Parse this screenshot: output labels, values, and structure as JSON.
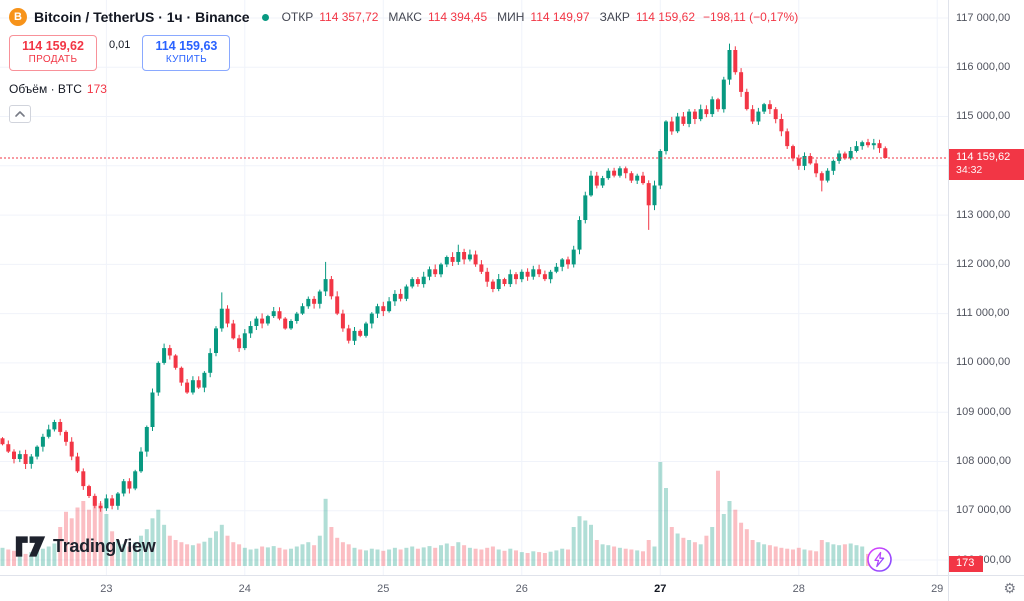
{
  "header": {
    "title": "Bitcoin / TetherUS · 1ч · Binance",
    "ohlc": {
      "o_label": "ОТКР",
      "o": "114 357,72",
      "h_label": "МАКС",
      "h": "114 394,45",
      "l_label": "МИН",
      "l": "114 149,97",
      "c_label": "ЗАКР",
      "c": "114 159,62",
      "change": "−198,11 (−0,17%)"
    },
    "sell_price": "114 159,62",
    "sell_label": "ПРОДАТЬ",
    "spread": "0,01",
    "buy_price": "114 159,63",
    "buy_label": "КУПИТЬ",
    "volume_label": "Объём · BTC",
    "volume_value": "173"
  },
  "price_line": {
    "text": "114 159,62",
    "countdown": "34:32",
    "value": 114159.62
  },
  "volume_tag": "173",
  "watermark": "TradingView",
  "colors": {
    "up": "#089981",
    "down": "#f23645",
    "vol_up": "rgba(8,153,129,0.32)",
    "vol_down": "rgba(242,54,69,0.32)",
    "grid": "#f0f3fa",
    "accent_buy": "#2962ff",
    "accent_sell": "#f23645",
    "btc_orange": "#f7931a"
  },
  "chart_data": {
    "type": "candlestick+volume",
    "title": "Bitcoin / TetherUS · 1ч · Binance",
    "symbol": "BTC/USDT",
    "interval": "1h",
    "exchange": "Binance",
    "last_candle": {
      "open": 114357.72,
      "high": 114394.45,
      "low": 114149.97,
      "close": 114159.62,
      "change": -198.11,
      "change_pct": -0.17,
      "volume_btc": 173
    },
    "y_axis": {
      "max": 117000,
      "min": 106000,
      "step": 1000
    },
    "levels": [
      {
        "t": "117 000,00",
        "v": 117000
      },
      {
        "t": "116 000,00",
        "v": 116000
      },
      {
        "t": "115 000,00",
        "v": 115000
      },
      {
        "t": "114 000,00",
        "v": 114000
      },
      {
        "t": "113 000,00",
        "v": 113000
      },
      {
        "t": "112 000,00",
        "v": 112000
      },
      {
        "t": "111 000,00",
        "v": 111000
      },
      {
        "t": "110 000,00",
        "v": 110000
      },
      {
        "t": "109 000,00",
        "v": 109000
      },
      {
        "t": "108 000,00",
        "v": 108000
      },
      {
        "t": "107 000,00",
        "v": 107000
      },
      {
        "t": "106 000,00",
        "v": 106000
      }
    ],
    "x_axis": {
      "ticks": [
        {
          "label": "23",
          "index": 18
        },
        {
          "label": "24",
          "index": 42
        },
        {
          "label": "25",
          "index": 66
        },
        {
          "label": "26",
          "index": 90
        },
        {
          "label": "27",
          "index": 114,
          "bold": true
        },
        {
          "label": "28",
          "index": 138
        },
        {
          "label": "29",
          "index": 162
        }
      ]
    },
    "price_line_value": 114159.62,
    "closes": [
      108350,
      108200,
      108050,
      108150,
      107950,
      108100,
      108300,
      108500,
      108650,
      108800,
      108600,
      108400,
      108100,
      107800,
      107500,
      107300,
      107100,
      107050,
      107250,
      107100,
      107350,
      107600,
      107450,
      107800,
      108200,
      108700,
      109400,
      110000,
      110300,
      110150,
      109900,
      109600,
      109400,
      109650,
      109500,
      109800,
      110200,
      110700,
      111100,
      110800,
      110500,
      110300,
      110600,
      110750,
      110900,
      110800,
      110950,
      111050,
      110900,
      110700,
      110850,
      111000,
      111150,
      111300,
      111200,
      111450,
      111700,
      111350,
      111000,
      110700,
      110450,
      110650,
      110550,
      110800,
      111000,
      111150,
      111050,
      111250,
      111400,
      111300,
      111550,
      111700,
      111600,
      111750,
      111900,
      111800,
      112000,
      112150,
      112050,
      112250,
      112100,
      112200,
      112000,
      111850,
      111650,
      111500,
      111700,
      111600,
      111800,
      111700,
      111850,
      111750,
      111900,
      111800,
      111700,
      111850,
      111950,
      112100,
      112000,
      112300,
      112900,
      113400,
      113800,
      113600,
      113750,
      113900,
      113800,
      113950,
      113850,
      113700,
      113800,
      113650,
      113200,
      113600,
      114300,
      114900,
      114700,
      115000,
      114850,
      115100,
      114950,
      115150,
      115050,
      115350,
      115150,
      115750,
      116350,
      115900,
      115500,
      115150,
      114900,
      115100,
      115250,
      115150,
      114950,
      114700,
      114400,
      114150,
      114000,
      114200,
      114050,
      113850,
      113700,
      113900,
      114100,
      114250,
      114150,
      114300,
      114400,
      114480,
      114420,
      114460,
      114360,
      114159.62
    ],
    "volumes": [
      420,
      380,
      350,
      300,
      280,
      320,
      360,
      400,
      450,
      520,
      900,
      1250,
      1100,
      1350,
      1500,
      1300,
      1600,
      1450,
      1200,
      800,
      600,
      500,
      450,
      550,
      700,
      850,
      1100,
      1300,
      950,
      700,
      600,
      550,
      500,
      480,
      520,
      560,
      650,
      800,
      950,
      700,
      550,
      500,
      420,
      380,
      400,
      450,
      430,
      460,
      420,
      380,
      400,
      450,
      500,
      550,
      480,
      700,
      1550,
      900,
      650,
      550,
      500,
      420,
      380,
      360,
      400,
      380,
      350,
      380,
      420,
      380,
      420,
      450,
      400,
      430,
      460,
      420,
      480,
      520,
      460,
      550,
      480,
      420,
      400,
      380,
      420,
      450,
      380,
      350,
      400,
      360,
      320,
      300,
      340,
      320,
      300,
      330,
      360,
      400,
      380,
      900,
      1150,
      1050,
      950,
      600,
      500,
      480,
      450,
      420,
      400,
      380,
      360,
      340,
      600,
      450,
      2400,
      1800,
      900,
      750,
      650,
      600,
      550,
      500,
      700,
      900,
      2200,
      1200,
      1500,
      1300,
      1000,
      850,
      600,
      550,
      500,
      480,
      450,
      420,
      400,
      380,
      420,
      380,
      360,
      340,
      600,
      550,
      500,
      480,
      500,
      520,
      480,
      450,
      280,
      260,
      240,
      173
    ],
    "wick_overrides": {
      "17": {
        "low": 106980
      },
      "38": {
        "high": 111430
      },
      "56": {
        "high": 112050
      },
      "79": {
        "high": 112400
      },
      "112": {
        "low": 112700
      },
      "126": {
        "high": 116480
      },
      "142": {
        "low": 113480
      },
      "153": {
        "open": 114357.72,
        "high": 114394.45,
        "low": 114149.97
      }
    }
  }
}
